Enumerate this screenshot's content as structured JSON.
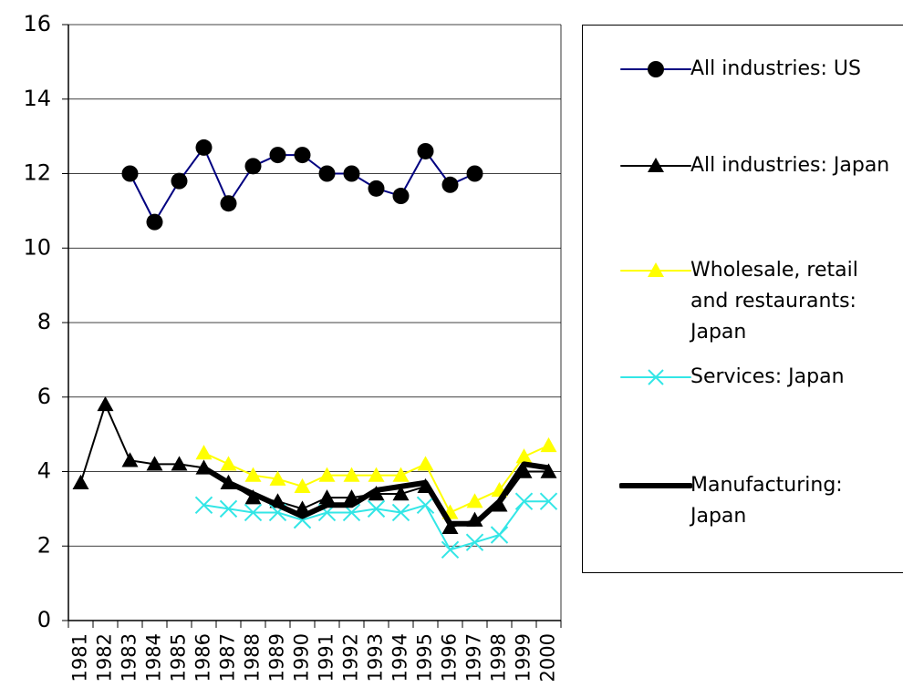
{
  "chart_data": {
    "type": "line",
    "categories": [
      "1981",
      "1982",
      "1983",
      "1984",
      "1985",
      "1986",
      "1987",
      "1988",
      "1989",
      "1990",
      "1991",
      "1992",
      "1993",
      "1994",
      "1995",
      "1996",
      "1997",
      "1998",
      "1999",
      "2000"
    ],
    "series": [
      {
        "name": "All industries: US",
        "color": "#000080",
        "marker": "circle",
        "marker_color": "#000000",
        "line_width": 2,
        "values": [
          null,
          null,
          12.0,
          10.7,
          11.8,
          12.7,
          11.2,
          12.2,
          12.5,
          12.5,
          12.0,
          12.0,
          11.6,
          11.4,
          12.6,
          11.7,
          12.0,
          null,
          null,
          null
        ]
      },
      {
        "name": "All industries: Japan",
        "color": "#000000",
        "marker": "triangle",
        "marker_color": "#000000",
        "line_width": 2,
        "values": [
          3.7,
          5.8,
          4.3,
          4.2,
          4.2,
          4.1,
          3.7,
          3.3,
          3.2,
          3.0,
          3.3,
          3.3,
          3.4,
          3.4,
          3.6,
          2.5,
          2.7,
          3.1,
          4.0,
          4.0
        ]
      },
      {
        "name": "Wholesale, retail and restaurants: Japan",
        "color": "#ffff00",
        "marker": "triangle",
        "marker_color": "#ffff00",
        "line_width": 2,
        "values": [
          null,
          null,
          null,
          null,
          null,
          4.5,
          4.2,
          3.9,
          3.8,
          3.6,
          3.9,
          3.9,
          3.9,
          3.9,
          4.2,
          2.9,
          3.2,
          3.5,
          4.4,
          4.7
        ]
      },
      {
        "name": "Services: Japan",
        "color": "#33e6e6",
        "marker": "x",
        "marker_color": "#33e6e6",
        "line_width": 2,
        "values": [
          null,
          null,
          null,
          null,
          null,
          3.1,
          3.0,
          2.9,
          2.9,
          2.7,
          2.9,
          2.9,
          3.0,
          2.9,
          3.1,
          1.9,
          2.1,
          2.3,
          3.2,
          3.2
        ]
      },
      {
        "name": "Manufacturing: Japan",
        "color": "#000000",
        "marker": "none",
        "marker_color": "#000000",
        "line_width": 6,
        "values": [
          null,
          null,
          null,
          null,
          null,
          4.1,
          3.7,
          3.4,
          3.1,
          2.8,
          3.1,
          3.1,
          3.5,
          3.6,
          3.7,
          2.6,
          2.6,
          3.2,
          4.2,
          4.1
        ]
      }
    ],
    "ylim": [
      0,
      16
    ],
    "yticks": [
      0,
      2,
      4,
      6,
      8,
      10,
      12,
      14,
      16
    ],
    "grid": true,
    "legend": "right"
  }
}
